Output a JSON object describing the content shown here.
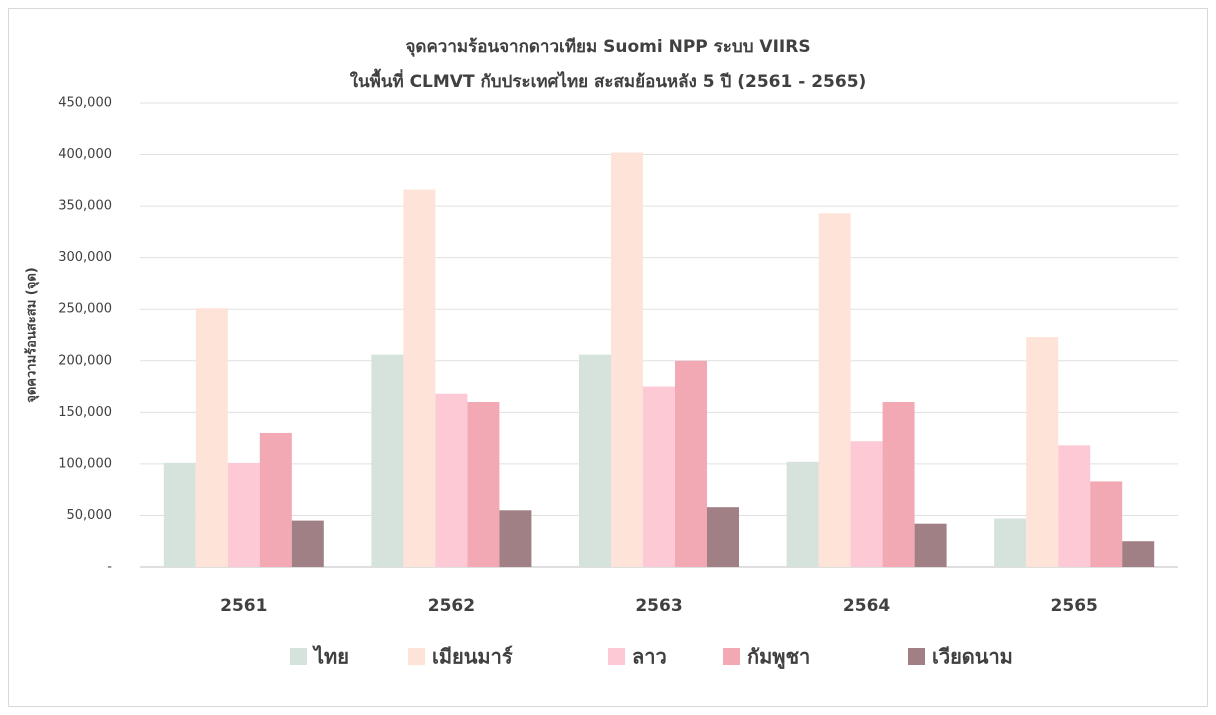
{
  "chart_data": {
    "type": "bar",
    "title": "จุดความร้อนจากดาวเทียม Suomi NPP ระบบ VIIRS",
    "subtitle": "ในพื้นที่ CLMVT กับประเทศไทย สะสมย้อนหลัง 5 ปี (2561 - 2565)",
    "y_label": "จุดความร้อนสะสม (จุด)",
    "categories": [
      "2561",
      "2562",
      "2563",
      "2564",
      "2565"
    ],
    "series": [
      {
        "name": "ไทย",
        "color": "#d5e3dc",
        "values": [
          101000,
          206000,
          206000,
          102000,
          47000
        ]
      },
      {
        "name": "เมียนมาร์",
        "color": "#fde3d8",
        "values": [
          251000,
          366000,
          402000,
          343000,
          223000
        ]
      },
      {
        "name": "ลาว",
        "color": "#fdc9d4",
        "values": [
          101000,
          168000,
          175000,
          122000,
          118000
        ]
      },
      {
        "name": "กัมพูชา",
        "color": "#f2a9b3",
        "values": [
          130000,
          160000,
          200000,
          160000,
          83000
        ]
      },
      {
        "name": "เวียดนาม",
        "color": "#a08085",
        "values": [
          45000,
          55000,
          58000,
          42000,
          25000
        ]
      }
    ],
    "ylim": [
      0,
      450000
    ],
    "yticks": [
      {
        "value": 0,
        "label": "-"
      },
      {
        "value": 50000,
        "label": "50,000"
      },
      {
        "value": 100000,
        "label": "100,000"
      },
      {
        "value": 150000,
        "label": "150,000"
      },
      {
        "value": 200000,
        "label": "200,000"
      },
      {
        "value": 250000,
        "label": "250,000"
      },
      {
        "value": 300000,
        "label": "300,000"
      },
      {
        "value": 350000,
        "label": "350,000"
      },
      {
        "value": 400000,
        "label": "400,000"
      },
      {
        "value": 450000,
        "label": "450,000"
      }
    ],
    "grid": true,
    "legend": "bottom"
  }
}
